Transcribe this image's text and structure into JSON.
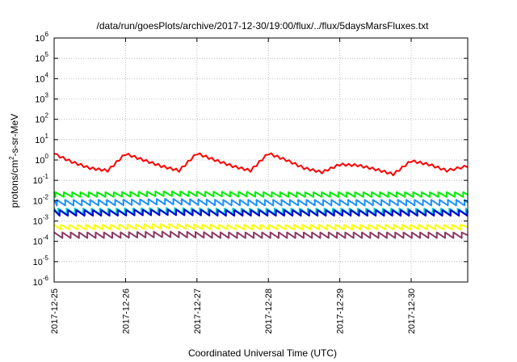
{
  "chart_data": {
    "type": "line",
    "title": "/data/run/goesPlots/archive/2017-12-30/19:00/flux/../flux/5daysMarsFluxes.txt",
    "xlabel": "Coordinated Universal Time (UTC)",
    "ylabel": "protons/cm2-s-sr-MeV",
    "ylabel_parts": {
      "base": "protons/cm",
      "sup": "2",
      "rest": "-s-sr-MeV"
    },
    "yscale": "log",
    "ylim": [
      1e-06,
      1000000.0
    ],
    "xlim": [
      "2017-12-25 00:00",
      "2017-12-30 19:00"
    ],
    "x_ticks": [
      "2017-12-25",
      "2017-12-26",
      "2017-12-27",
      "2017-12-28",
      "2017-12-29",
      "2017-12-30"
    ],
    "y_ticks": [
      {
        "value": 1e-06,
        "base": "10",
        "exp": "-6"
      },
      {
        "value": 1e-05,
        "base": "10",
        "exp": "-5"
      },
      {
        "value": 0.0001,
        "base": "10",
        "exp": "-4"
      },
      {
        "value": 0.001,
        "base": "10",
        "exp": "-3"
      },
      {
        "value": 0.01,
        "base": "10",
        "exp": "-2"
      },
      {
        "value": 0.1,
        "base": "10",
        "exp": "-1"
      },
      {
        "value": 1,
        "base": "10",
        "exp": "0"
      },
      {
        "value": 10,
        "base": "10",
        "exp": "1"
      },
      {
        "value": 100,
        "base": "10",
        "exp": "2"
      },
      {
        "value": 1000,
        "base": "10",
        "exp": "3"
      },
      {
        "value": 10000,
        "base": "10",
        "exp": "4"
      },
      {
        "value": 100000,
        "base": "10",
        "exp": "5"
      },
      {
        "value": 1000000,
        "base": "10",
        "exp": "6"
      }
    ],
    "grid": true,
    "legend": "none",
    "series": [
      {
        "color": "#ff0000",
        "x": [
          "2017-12-25 00:00",
          "2017-12-25 06:00",
          "2017-12-25 12:00",
          "2017-12-25 18:00",
          "2017-12-26 00:00",
          "2017-12-26 06:00",
          "2017-12-26 12:00",
          "2017-12-26 18:00",
          "2017-12-27 00:00",
          "2017-12-27 06:00",
          "2017-12-27 12:00",
          "2017-12-27 18:00",
          "2017-12-28 00:00",
          "2017-12-28 06:00",
          "2017-12-28 12:00",
          "2017-12-28 18:00",
          "2017-12-29 00:00",
          "2017-12-29 06:00",
          "2017-12-29 12:00",
          "2017-12-29 18:00",
          "2017-12-30 00:00",
          "2017-12-30 06:00",
          "2017-12-30 12:00",
          "2017-12-30 19:00"
        ],
        "y": [
          2.0,
          0.8,
          0.4,
          0.3,
          2.0,
          1.0,
          0.5,
          0.3,
          2.1,
          1.0,
          0.5,
          0.3,
          2.1,
          1.0,
          0.4,
          0.25,
          0.6,
          0.55,
          0.35,
          0.2,
          0.9,
          0.6,
          0.3,
          0.5
        ]
      },
      {
        "color": "#00ee00",
        "x": [
          "2017-12-25 00:00",
          "2017-12-25 19:00",
          "2017-12-26 14:00",
          "2017-12-27 09:00",
          "2017-12-28 04:00",
          "2017-12-28 23:00",
          "2017-12-29 18:00",
          "2017-12-30 19:00"
        ],
        "y": [
          0.02,
          0.02,
          0.022,
          0.021,
          0.02,
          0.02,
          0.02,
          0.02
        ]
      },
      {
        "color": "#1e90ff",
        "x": [
          "2017-12-25 00:00",
          "2017-12-25 19:00",
          "2017-12-26 14:00",
          "2017-12-27 09:00",
          "2017-12-28 04:00",
          "2017-12-28 23:00",
          "2017-12-29 18:00",
          "2017-12-30 19:00"
        ],
        "y": [
          0.008,
          0.008,
          0.009,
          0.008,
          0.008,
          0.008,
          0.008,
          0.008
        ]
      },
      {
        "color": "#00ced1",
        "x": [
          "2017-12-25 00:00",
          "2017-12-25 19:00",
          "2017-12-26 14:00",
          "2017-12-27 09:00",
          "2017-12-28 04:00",
          "2017-12-28 23:00",
          "2017-12-29 18:00",
          "2017-12-30 19:00"
        ],
        "y": [
          0.003,
          0.003,
          0.0032,
          0.003,
          0.003,
          0.003,
          0.003,
          0.003
        ]
      },
      {
        "color": "#0000cd",
        "x": [
          "2017-12-25 00:00",
          "2017-12-25 19:00",
          "2017-12-26 14:00",
          "2017-12-27 09:00",
          "2017-12-28 04:00",
          "2017-12-28 23:00",
          "2017-12-29 18:00",
          "2017-12-30 19:00"
        ],
        "y": [
          0.0025,
          0.0025,
          0.0027,
          0.0025,
          0.0025,
          0.0025,
          0.0025,
          0.0025
        ]
      },
      {
        "color": "#ffff00",
        "x": [
          "2017-12-25 00:00",
          "2017-12-25 19:00",
          "2017-12-26 14:00",
          "2017-12-27 09:00",
          "2017-12-28 04:00",
          "2017-12-28 23:00",
          "2017-12-29 18:00",
          "2017-12-30 19:00"
        ],
        "y": [
          0.0005,
          0.0005,
          0.00055,
          0.0005,
          0.0005,
          0.0005,
          0.0005,
          0.0005
        ]
      },
      {
        "color": "#8b3a62",
        "x": [
          "2017-12-25 00:00",
          "2017-12-25 19:00",
          "2017-12-26 14:00",
          "2017-12-27 09:00",
          "2017-12-28 04:00",
          "2017-12-28 23:00",
          "2017-12-29 18:00",
          "2017-12-30 19:00"
        ],
        "y": [
          0.0002,
          0.0002,
          0.00022,
          0.0002,
          0.0002,
          0.0002,
          0.0002,
          0.0002
        ]
      }
    ]
  }
}
